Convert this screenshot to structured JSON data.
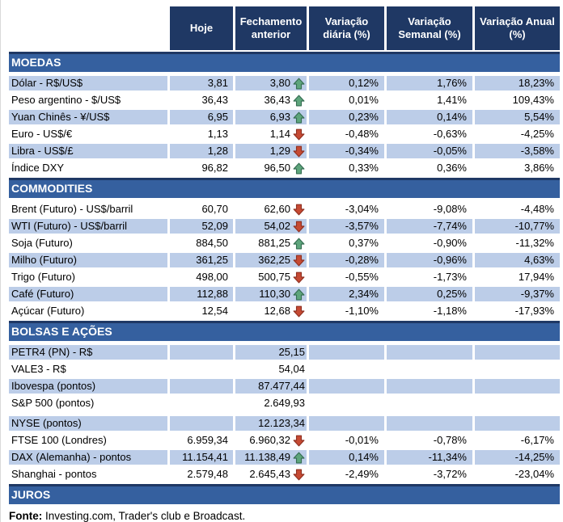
{
  "table": {
    "columns": [
      "Hoje",
      "Fechamento anterior",
      "Variação diária (%)",
      "Variação Semanal (%)",
      "Variação Anual (%)"
    ]
  },
  "sections": [
    {
      "title": "MOEDAS",
      "shade_first": true,
      "rows": [
        {
          "label": "Dólar - R$/US$",
          "hoje": "3,81",
          "fechamento": "3,80",
          "arrow": "up",
          "var_diaria": "0,12%",
          "var_semanal": "1,76%",
          "var_anual": "18,23%"
        },
        {
          "label": "Peso argentino - $/US$",
          "hoje": "36,43",
          "fechamento": "36,43",
          "arrow": "up",
          "var_diaria": "0,01%",
          "var_semanal": "1,41%",
          "var_anual": "109,43%"
        },
        {
          "label": "Yuan Chinês - ¥/US$",
          "hoje": "6,95",
          "fechamento": "6,93",
          "arrow": "up",
          "var_diaria": "0,23%",
          "var_semanal": "0,14%",
          "var_anual": "5,54%"
        },
        {
          "label": "Euro - US$/€",
          "hoje": "1,13",
          "fechamento": "1,14",
          "arrow": "down",
          "var_diaria": "-0,48%",
          "var_semanal": "-0,63%",
          "var_anual": "-4,25%"
        },
        {
          "label": "Libra - US$/£",
          "hoje": "1,28",
          "fechamento": "1,29",
          "arrow": "down",
          "var_diaria": "-0,34%",
          "var_semanal": "-0,05%",
          "var_anual": "-3,58%"
        },
        {
          "label": "Índice DXY",
          "hoje": "96,82",
          "fechamento": "96,50",
          "arrow": "up",
          "var_diaria": "0,33%",
          "var_semanal": "0,36%",
          "var_anual": "3,86%"
        }
      ]
    },
    {
      "title": "COMMODITIES",
      "shade_first": false,
      "rows": [
        {
          "label": "Brent (Futuro) - US$/barril",
          "hoje": "60,70",
          "fechamento": "62,60",
          "arrow": "down",
          "var_diaria": "-3,04%",
          "var_semanal": "-9,08%",
          "var_anual": "-4,48%"
        },
        {
          "label": "WTI (Futuro) - US$/barril",
          "hoje": "52,09",
          "fechamento": "54,02",
          "arrow": "down",
          "var_diaria": "-3,57%",
          "var_semanal": "-7,74%",
          "var_anual": "-10,77%"
        },
        {
          "label": "Soja (Futuro)",
          "hoje": "884,50",
          "fechamento": "881,25",
          "arrow": "up",
          "var_diaria": "0,37%",
          "var_semanal": "-0,90%",
          "var_anual": "-11,32%"
        },
        {
          "label": "Milho (Futuro)",
          "hoje": "361,25",
          "fechamento": "362,25",
          "arrow": "down",
          "var_diaria": "-0,28%",
          "var_semanal": "-0,96%",
          "var_anual": "4,63%"
        },
        {
          "label": "Trigo (Futuro)",
          "hoje": "498,00",
          "fechamento": "500,75",
          "arrow": "down",
          "var_diaria": "-0,55%",
          "var_semanal": "-1,73%",
          "var_anual": "17,94%"
        },
        {
          "label": "Café (Futuro)",
          "hoje": "112,88",
          "fechamento": "110,30",
          "arrow": "up",
          "var_diaria": "2,34%",
          "var_semanal": "0,25%",
          "var_anual": "-9,37%"
        },
        {
          "label": "Açúcar (Futuro)",
          "hoje": "12,54",
          "fechamento": "12,68",
          "arrow": "down",
          "var_diaria": "-1,10%",
          "var_semanal": "-1,18%",
          "var_anual": "-17,93%"
        }
      ]
    },
    {
      "title": "BOLSAS E AÇÕES",
      "shade_first": true,
      "rows": [
        {
          "label": "PETR4 (PN) - R$",
          "hoje": "",
          "fechamento": "25,15",
          "arrow": null,
          "var_diaria": "",
          "var_semanal": "",
          "var_anual": ""
        },
        {
          "label": "VALE3 - R$",
          "hoje": "",
          "fechamento": "54,04",
          "arrow": null,
          "var_diaria": "",
          "var_semanal": "",
          "var_anual": ""
        },
        {
          "label": "Ibovespa (pontos)",
          "hoje": "",
          "fechamento": "87.477,44",
          "arrow": null,
          "var_diaria": "",
          "var_semanal": "",
          "var_anual": ""
        },
        {
          "label": "S&P 500 (pontos)",
          "hoje": "",
          "fechamento": "2.649,93",
          "arrow": null,
          "var_diaria": "",
          "var_semanal": "",
          "var_anual": ""
        },
        {
          "label": "NYSE (pontos)",
          "hoje": "",
          "fechamento": "12.123,34",
          "arrow": null,
          "var_diaria": "",
          "var_semanal": "",
          "var_anual": "",
          "extra_gap_before": true
        },
        {
          "label": "FTSE 100 (Londres)",
          "hoje": "6.959,34",
          "fechamento": "6.960,32",
          "arrow": "down",
          "var_diaria": "-0,01%",
          "var_semanal": "-0,78%",
          "var_anual": "-6,17%"
        },
        {
          "label": "DAX (Alemanha) - pontos",
          "hoje": "11.154,41",
          "fechamento": "11.138,49",
          "arrow": "up",
          "var_diaria": "0,14%",
          "var_semanal": "-11,34%",
          "var_anual": "-14,25%"
        },
        {
          "label": "Shanghai - pontos",
          "hoje": "2.579,48",
          "fechamento": "2.645,43",
          "arrow": "down",
          "var_diaria": "-2,49%",
          "var_semanal": "-3,72%",
          "var_anual": "-23,04%"
        }
      ]
    },
    {
      "title": "JUROS",
      "shade_first": true,
      "rows": []
    }
  ],
  "footer": {
    "label": "Fonte:",
    "text": " Investing.com, Trader's club e Broadcast."
  },
  "icons": {
    "up": "up-arrow-icon",
    "down": "down-arrow-icon"
  },
  "colors": {
    "header_bg": "#1F3864",
    "band_bg": "#35609F",
    "row_shade": "#BCCDE8",
    "arrow_up_fill": "#5EA57C",
    "arrow_up_stroke": "#356D52",
    "arrow_down_fill": "#C64A33",
    "arrow_down_stroke": "#8F3021",
    "text": "#000000"
  }
}
